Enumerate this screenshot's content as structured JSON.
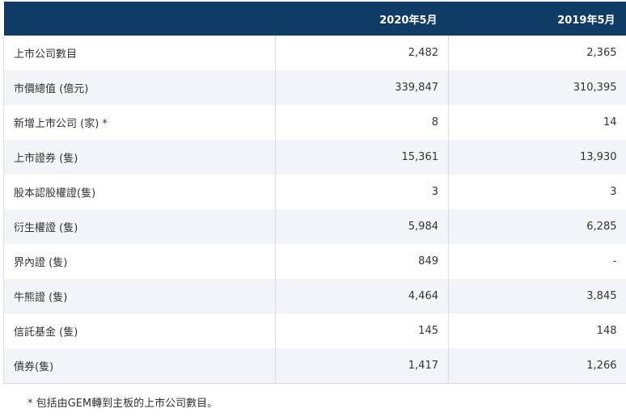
{
  "table": {
    "headers": [
      "",
      "2020年5月",
      "2019年5月"
    ],
    "rows": [
      {
        "label": "上市公司數目",
        "y2020": "2,482",
        "y2019": "2,365"
      },
      {
        "label": "市價總值 (億元)",
        "y2020": "339,847",
        "y2019": "310,395"
      },
      {
        "label": "新增上市公司 (家) *",
        "y2020": "8",
        "y2019": "14"
      },
      {
        "label": "上市證券 (隻)",
        "y2020": "15,361",
        "y2019": "13,930"
      },
      {
        "label": "股本認股權證(隻)",
        "y2020": "3",
        "y2019": "3"
      },
      {
        "label": "衍生權證 (隻)",
        "y2020": "5,984",
        "y2019": "6,285"
      },
      {
        "label": "界內證 (隻)",
        "y2020": "849",
        "y2019": "-"
      },
      {
        "label": "牛熊證 (隻)",
        "y2020": "4,464",
        "y2019": "3,845"
      },
      {
        "label": "信託基金 (隻)",
        "y2020": "145",
        "y2019": "148"
      },
      {
        "label": "債券(隻)",
        "y2020": "1,417",
        "y2019": "1,266"
      }
    ]
  },
  "footnote": "* 包括由GEM轉到主板的上市公司數目。",
  "colors": {
    "header_bg": "#0f3c64",
    "row_alt_bg": "#f2f4f7",
    "border": "#d9dde2"
  }
}
